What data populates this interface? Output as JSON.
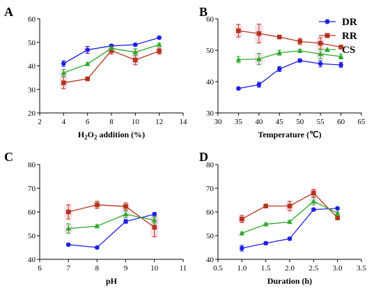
{
  "legend": [
    {
      "name": "DR",
      "color": "#1f1fe6",
      "marker": "circle"
    },
    {
      "name": "RR",
      "color": "#b5331c",
      "marker": "square"
    },
    {
      "name": "CS",
      "color": "#2aa82a",
      "marker": "triangle"
    }
  ],
  "chart_data": [
    {
      "panel": "A",
      "type": "line",
      "xlabel": "H2O2 addition (%)",
      "xlabel_base": "H",
      "xlabel_sub1": "2",
      "xlabel_mid": "O",
      "xlabel_sub2": "2",
      "xlabel_tail": " addition (%)",
      "ylabel": "",
      "xlim": [
        2,
        14
      ],
      "ylim": [
        20,
        60
      ],
      "xticks": [
        2,
        4,
        6,
        8,
        10,
        12,
        14
      ],
      "yticks": [
        20,
        30,
        40,
        50,
        60
      ],
      "x": [
        4,
        6,
        8,
        10,
        12
      ],
      "series": [
        {
          "name": "DR",
          "values": [
            41.0,
            46.8,
            48.5,
            49.0,
            52.0
          ],
          "err": [
            1.2,
            1.5,
            0.6,
            0.5,
            0.4
          ]
        },
        {
          "name": "RR",
          "values": [
            32.8,
            34.5,
            46.5,
            42.5,
            46.3
          ],
          "err": [
            2.5,
            0.8,
            1.5,
            2.0,
            1.3
          ]
        },
        {
          "name": "CS",
          "values": [
            37.0,
            40.8,
            47.5,
            45.8,
            49.0
          ],
          "err": [
            1.5,
            0.6,
            0.6,
            1.5,
            0.6
          ]
        }
      ]
    },
    {
      "panel": "B",
      "type": "line",
      "xlabel": "Temperature (℃)",
      "ylabel": "",
      "xlim": [
        30,
        65
      ],
      "ylim": [
        30,
        60
      ],
      "xticks": [
        30,
        35,
        40,
        45,
        50,
        55,
        60,
        65
      ],
      "yticks": [
        30,
        40,
        50,
        60
      ],
      "x": [
        35,
        40,
        45,
        50,
        55,
        60
      ],
      "series": [
        {
          "name": "DR",
          "values": [
            37.8,
            39.0,
            44.0,
            46.7,
            45.7,
            45.3
          ],
          "err": [
            0.4,
            0.8,
            0.8,
            0.5,
            1.0,
            0.8
          ]
        },
        {
          "name": "RR",
          "values": [
            56.2,
            55.3,
            54.2,
            52.8,
            52.2,
            51.0
          ],
          "err": [
            2.0,
            3.0,
            0.5,
            1.0,
            1.8,
            0.5
          ]
        },
        {
          "name": "CS",
          "values": [
            47.0,
            47.2,
            49.2,
            49.8,
            48.8,
            48.0
          ],
          "err": [
            1.0,
            1.8,
            0.8,
            0.5,
            1.5,
            0.8
          ]
        }
      ]
    },
    {
      "panel": "C",
      "type": "line",
      "xlabel": "pH",
      "ylabel": "",
      "xlim": [
        6,
        11
      ],
      "ylim": [
        40,
        80
      ],
      "xticks": [
        6,
        7,
        8,
        9,
        10,
        11
      ],
      "yticks": [
        40,
        50,
        60,
        70,
        80
      ],
      "x": [
        7,
        8,
        9,
        10
      ],
      "series": [
        {
          "name": "DR",
          "values": [
            46.2,
            45.0,
            56.0,
            59.0
          ],
          "err": [
            0.4,
            0.4,
            0.8,
            0.8
          ]
        },
        {
          "name": "RR",
          "values": [
            60.0,
            63.0,
            62.3,
            53.5
          ],
          "err": [
            3.0,
            1.5,
            1.5,
            4.0
          ]
        },
        {
          "name": "CS",
          "values": [
            53.0,
            54.0,
            59.0,
            56.5
          ],
          "err": [
            2.0,
            0.5,
            1.5,
            1.5
          ]
        }
      ]
    },
    {
      "panel": "D",
      "type": "line",
      "xlabel": "Duration (h)",
      "ylabel": "",
      "xlim": [
        0.5,
        3.5
      ],
      "ylim": [
        40,
        80
      ],
      "xticks": [
        0.5,
        1.0,
        1.5,
        2.0,
        2.5,
        3.0,
        3.5
      ],
      "yticks": [
        40,
        50,
        60,
        70,
        80
      ],
      "xtick_fmt": 1,
      "x": [
        1.0,
        1.5,
        2.0,
        2.5,
        3.0
      ],
      "series": [
        {
          "name": "DR",
          "values": [
            44.7,
            46.8,
            48.7,
            61.0,
            61.5
          ],
          "err": [
            1.2,
            0.6,
            0.6,
            0.5,
            0.5
          ]
        },
        {
          "name": "RR",
          "values": [
            57.0,
            62.5,
            62.5,
            68.0,
            57.5
          ],
          "err": [
            1.5,
            0.6,
            2.0,
            1.5,
            0.8
          ]
        },
        {
          "name": "CS",
          "values": [
            51.0,
            54.8,
            55.8,
            64.5,
            59.5
          ],
          "err": [
            0.5,
            0.5,
            0.6,
            1.5,
            0.5
          ]
        }
      ]
    }
  ]
}
